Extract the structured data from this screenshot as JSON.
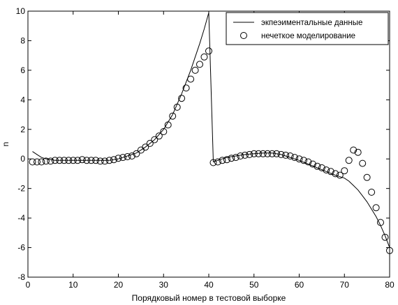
{
  "chart_data": {
    "type": "line",
    "title": "",
    "xlabel": "Порядковый номер в тестовой выборке",
    "ylabel": "n",
    "xlim": [
      0,
      80
    ],
    "ylim": [
      -8,
      10
    ],
    "xticks": [
      0,
      10,
      20,
      30,
      40,
      50,
      60,
      70,
      80
    ],
    "yticks": [
      -8,
      -6,
      -4,
      -2,
      0,
      2,
      4,
      6,
      8,
      10
    ],
    "xtick_labels": [
      "0",
      "10",
      "20",
      "30",
      "40",
      "50",
      "60",
      "70",
      "80"
    ],
    "ytick_labels": [
      "-8",
      "-6",
      "-4",
      "-2",
      "0",
      "2",
      "4",
      "6",
      "8",
      "10"
    ],
    "grid": false,
    "legend_position": "top-right",
    "series": [
      {
        "name": "экпеэиментальные данные",
        "style": "line",
        "color": "#000000",
        "x": [
          1,
          2,
          3,
          4,
          5,
          6,
          8,
          10,
          12,
          14,
          16,
          18,
          20,
          22,
          24,
          26,
          28,
          30,
          32,
          34,
          36,
          38,
          39,
          40,
          41,
          42,
          43,
          44,
          45,
          46,
          47,
          48,
          50,
          52,
          54,
          56,
          58,
          60,
          62,
          64,
          66,
          68,
          69,
          70,
          71,
          72,
          73,
          74,
          75,
          76,
          77,
          78,
          79,
          80
        ],
        "y": [
          0.5,
          0.3,
          0.1,
          0.0,
          -0.05,
          -0.1,
          -0.1,
          -0.1,
          -0.1,
          -0.1,
          -0.1,
          -0.1,
          0.0,
          0.2,
          0.4,
          0.8,
          1.3,
          2.0,
          3.0,
          4.4,
          6.0,
          7.8,
          8.8,
          9.9,
          -0.2,
          -0.1,
          0.0,
          0.1,
          0.15,
          0.2,
          0.25,
          0.3,
          0.35,
          0.4,
          0.4,
          0.3,
          0.1,
          -0.1,
          -0.35,
          -0.6,
          -0.85,
          -1.1,
          -1.2,
          -1.3,
          -1.5,
          -1.8,
          -2.1,
          -2.5,
          -2.9,
          -3.4,
          -3.9,
          -4.5,
          -5.2,
          -6.0
        ]
      },
      {
        "name": "нечеткое моделирование",
        "style": "circle",
        "color": "#000000",
        "x": [
          1,
          2,
          3,
          4,
          5,
          6,
          7,
          8,
          9,
          10,
          11,
          12,
          13,
          14,
          15,
          16,
          17,
          18,
          19,
          20,
          21,
          22,
          23,
          24,
          25,
          26,
          27,
          28,
          29,
          30,
          31,
          32,
          33,
          34,
          35,
          36,
          37,
          38,
          39,
          40,
          41,
          42,
          43,
          44,
          45,
          46,
          47,
          48,
          49,
          50,
          51,
          52,
          53,
          54,
          55,
          56,
          57,
          58,
          59,
          60,
          61,
          62,
          63,
          64,
          65,
          66,
          67,
          68,
          69,
          70,
          71,
          72,
          73,
          74,
          75,
          76,
          77,
          78,
          79,
          80
        ],
        "y": [
          -0.2,
          -0.2,
          -0.2,
          -0.15,
          -0.15,
          -0.1,
          -0.1,
          -0.1,
          -0.1,
          -0.1,
          -0.1,
          -0.05,
          -0.1,
          -0.1,
          -0.1,
          -0.15,
          -0.15,
          -0.1,
          -0.05,
          0.05,
          0.1,
          0.15,
          0.2,
          0.35,
          0.6,
          0.8,
          1.05,
          1.3,
          1.55,
          1.85,
          2.3,
          2.9,
          3.5,
          4.1,
          4.8,
          5.4,
          6.0,
          6.4,
          6.9,
          7.3,
          -0.25,
          -0.2,
          -0.1,
          -0.05,
          0.05,
          0.1,
          0.2,
          0.25,
          0.3,
          0.35,
          0.35,
          0.35,
          0.35,
          0.35,
          0.35,
          0.3,
          0.25,
          0.2,
          0.1,
          0.0,
          -0.1,
          -0.2,
          -0.35,
          -0.5,
          -0.6,
          -0.75,
          -0.85,
          -1.0,
          -1.1,
          -0.8,
          -0.1,
          0.6,
          0.45,
          -0.3,
          -1.25,
          -2.25,
          -3.3,
          -4.3,
          -5.3,
          -6.2
        ]
      }
    ]
  }
}
